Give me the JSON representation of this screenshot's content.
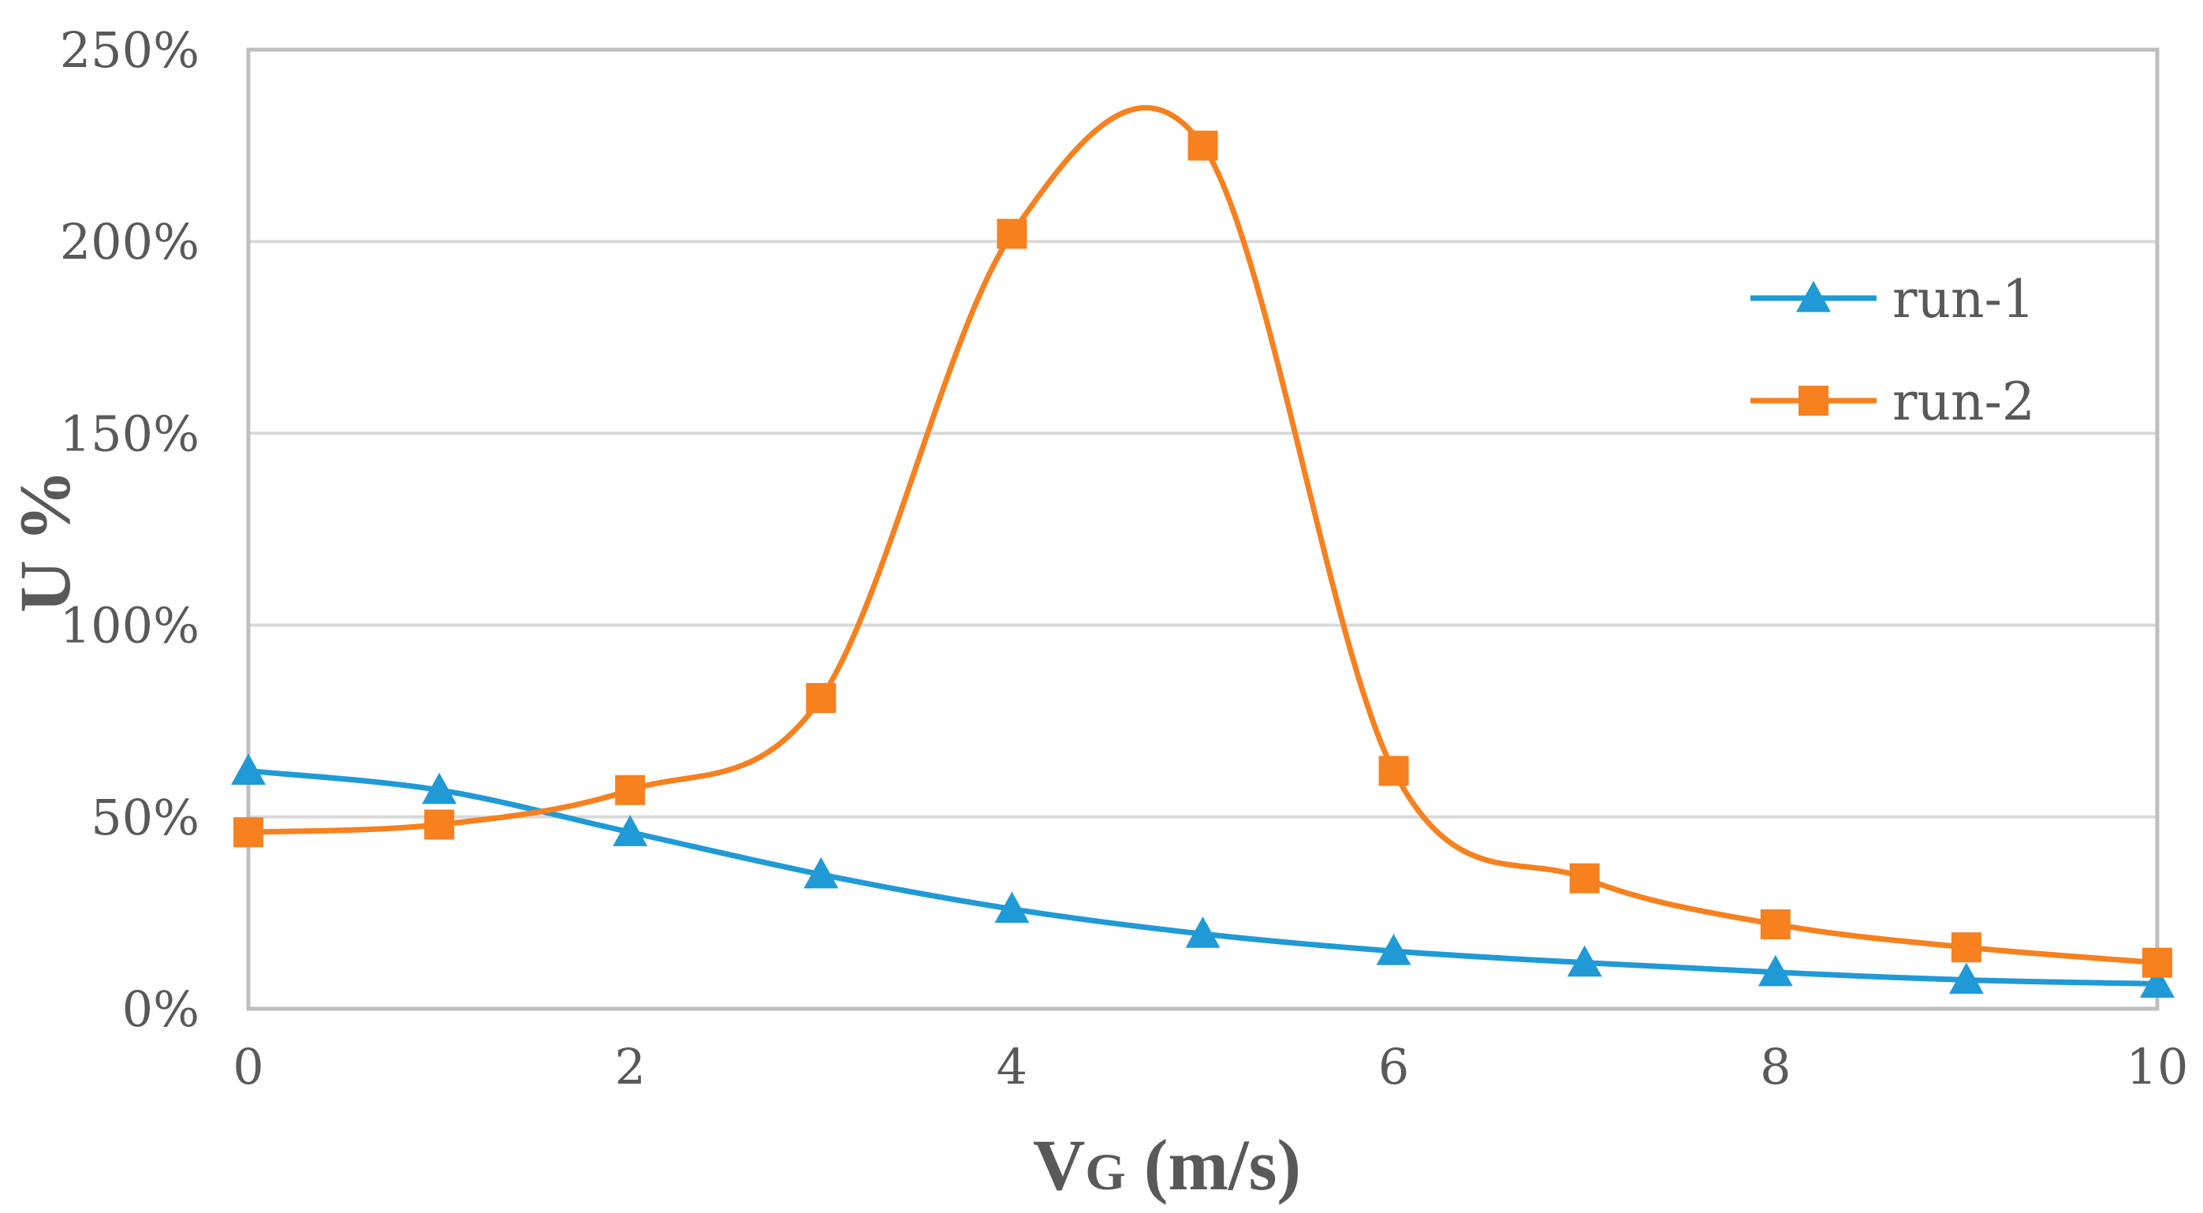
{
  "chart_data": {
    "type": "line",
    "title": "",
    "xlabel": {
      "main": "V",
      "sub": "G",
      "unit": " (m/s)"
    },
    "ylabel": "U %",
    "xlim": [
      0,
      10
    ],
    "ylim": [
      0,
      2.5
    ],
    "x_ticks": [
      "0",
      "2",
      "4",
      "6",
      "8",
      "10"
    ],
    "y_ticks": [
      "0%",
      "50%",
      "100%",
      "150%",
      "200%",
      "250%"
    ],
    "grid": "horizontal",
    "legend_position": "right",
    "x": [
      0,
      1,
      2,
      3,
      4,
      5,
      6,
      7,
      8,
      9,
      10
    ],
    "series": [
      {
        "name": "run-1",
        "marker": "triangle",
        "color": "#1f9ad6",
        "values": [
          0.62,
          0.57,
          0.46,
          0.35,
          0.26,
          0.195,
          0.15,
          0.12,
          0.095,
          0.075,
          0.065
        ]
      },
      {
        "name": "run-2",
        "marker": "square",
        "color": "#f7801f",
        "values": [
          0.46,
          0.48,
          0.57,
          0.81,
          2.02,
          2.25,
          0.62,
          0.34,
          0.22,
          0.16,
          0.12
        ]
      }
    ]
  }
}
